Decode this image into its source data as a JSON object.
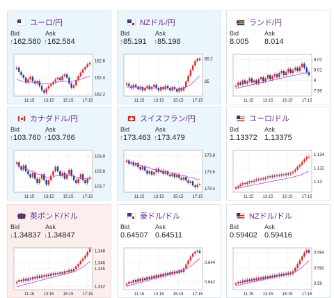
{
  "tiles": [
    {
      "pair": "ユーロ/円",
      "flag": "eu",
      "bg": "blue",
      "bid_label": "Bid",
      "ask_label": "Ask",
      "bid": "162.580",
      "ask": "162.584",
      "arrow": "up",
      "chart_data": {
        "type": "candlestick",
        "x_ticks": [
          "11:15",
          "13:15",
          "15:15",
          "17:15"
        ],
        "y_ticks": [
          "162.6",
          "162.4",
          "162.2"
        ],
        "y_tick_values": [
          162.6,
          162.4,
          162.2
        ],
        "ylim": [
          162.18,
          162.68
        ],
        "close": [
          162.52,
          162.47,
          162.43,
          162.4,
          162.34,
          162.38,
          162.41,
          162.36,
          162.33,
          162.36,
          162.3,
          162.25,
          162.22,
          162.27,
          162.3,
          162.32,
          162.35,
          162.38,
          162.4,
          162.37,
          162.42,
          162.44,
          162.4,
          162.33,
          162.28,
          162.31,
          162.37,
          162.42,
          162.46,
          162.5,
          162.53,
          162.56,
          162.58
        ],
        "ma": [
          162.38,
          162.37,
          162.36,
          162.36,
          162.35,
          162.35,
          162.35,
          162.34,
          162.34,
          162.34,
          162.34,
          162.33,
          162.33,
          162.33,
          162.33,
          162.33,
          162.34,
          162.34,
          162.35,
          162.35,
          162.35,
          162.36,
          162.36,
          162.36,
          162.36,
          162.36,
          162.37,
          162.37,
          162.38,
          162.39,
          162.4,
          162.41,
          162.42
        ]
      }
    },
    {
      "pair": "NZドル/円",
      "flag": "nz",
      "bg": "blue",
      "bid_label": "Bid",
      "ask_label": "Ask",
      "bid": "85.191",
      "ask": "85.198",
      "arrow": "up",
      "chart_data": {
        "type": "candlestick",
        "x_ticks": [
          "11:15",
          "13:15",
          "15:15",
          "17:15"
        ],
        "y_ticks": [
          "85.2",
          "85"
        ],
        "y_tick_values": [
          85.2,
          85.0
        ],
        "ylim": [
          84.87,
          85.24
        ],
        "close": [
          84.98,
          84.96,
          84.94,
          84.97,
          84.95,
          84.93,
          84.95,
          84.92,
          84.94,
          84.96,
          84.93,
          84.95,
          84.97,
          84.94,
          84.92,
          84.95,
          84.93,
          84.96,
          84.94,
          84.92,
          84.95,
          84.93,
          84.91,
          84.94,
          84.92,
          84.95,
          85.0,
          85.05,
          85.1,
          85.14,
          85.18,
          85.2,
          85.19
        ],
        "ma": [
          84.95,
          84.95,
          84.95,
          84.95,
          84.95,
          84.95,
          84.95,
          84.94,
          84.94,
          84.94,
          84.94,
          84.94,
          84.94,
          84.94,
          84.94,
          84.94,
          84.94,
          84.94,
          84.94,
          84.94,
          84.94,
          84.94,
          84.94,
          84.94,
          84.94,
          84.94,
          84.95,
          84.96,
          84.97,
          84.99,
          85.01,
          85.03,
          85.05
        ]
      }
    },
    {
      "pair": "ランド/円",
      "flag": "za",
      "bg": "white",
      "bid_label": "Bid",
      "ask_label": "Ask",
      "bid": "8.005",
      "ask": "8.014",
      "arrow": "none",
      "chart_data": {
        "type": "candlestick",
        "x_ticks": [
          "11:15",
          "13:15",
          "15:15",
          "17:15"
        ],
        "y_ticks": [
          "8.02",
          "8.01",
          "8",
          "7.99"
        ],
        "y_tick_values": [
          8.02,
          8.01,
          8.0,
          7.99
        ],
        "ylim": [
          7.985,
          8.025
        ],
        "close": [
          7.995,
          7.998,
          7.996,
          8.0,
          7.997,
          7.999,
          8.002,
          7.998,
          8.0,
          7.997,
          8.001,
          8.003,
          7.999,
          8.002,
          8.005,
          8.001,
          8.004,
          8.006,
          8.003,
          8.007,
          8.009,
          8.005,
          8.008,
          8.011,
          8.007,
          8.01,
          8.012,
          8.009,
          8.013,
          8.016,
          8.012,
          8.008,
          8.005
        ],
        "ma": [
          7.992,
          7.993,
          7.993,
          7.994,
          7.994,
          7.995,
          7.995,
          7.996,
          7.996,
          7.997,
          7.997,
          7.998,
          7.998,
          7.999,
          7.999,
          8.0,
          8.0,
          8.001,
          8.001,
          8.002,
          8.002,
          8.003,
          8.003,
          8.004,
          8.004,
          8.005,
          8.005,
          8.006,
          8.006,
          8.007,
          8.007,
          8.007,
          8.007
        ]
      }
    },
    {
      "pair": "カナダドル/円",
      "flag": "ca",
      "bg": "blue",
      "bid_label": "Bid",
      "ask_label": "Ask",
      "bid": "103.760",
      "ask": "103.766",
      "arrow": "up",
      "chart_data": {
        "type": "candlestick",
        "x_ticks": [
          "11:15",
          "13:15",
          "15:15",
          "17:15"
        ],
        "y_ticks": [
          "103.9",
          "103.8",
          "103.7"
        ],
        "y_tick_values": [
          103.9,
          103.8,
          103.7
        ],
        "ylim": [
          103.66,
          103.94
        ],
        "close": [
          103.86,
          103.83,
          103.81,
          103.84,
          103.8,
          103.78,
          103.76,
          103.79,
          103.75,
          103.72,
          103.75,
          103.78,
          103.74,
          103.71,
          103.74,
          103.77,
          103.8,
          103.83,
          103.8,
          103.77,
          103.79,
          103.75,
          103.78,
          103.81,
          103.77,
          103.74,
          103.72,
          103.75,
          103.78,
          103.74,
          103.72,
          103.75,
          103.76
        ],
        "ma": [
          103.85,
          103.84,
          103.83,
          103.83,
          103.82,
          103.81,
          103.8,
          103.8,
          103.79,
          103.78,
          103.78,
          103.77,
          103.77,
          103.76,
          103.76,
          103.76,
          103.76,
          103.77,
          103.77,
          103.77,
          103.77,
          103.77,
          103.77,
          103.77,
          103.77,
          103.77,
          103.76,
          103.76,
          103.76,
          103.76,
          103.75,
          103.75,
          103.75
        ]
      }
    },
    {
      "pair": "スイスフラン/円",
      "flag": "ch",
      "bg": "blue",
      "bid_label": "Bid",
      "ask_label": "Ask",
      "bid": "173.463",
      "ask": "173.479",
      "arrow": "up",
      "chart_data": {
        "type": "candlestick",
        "x_ticks": [
          "11:15",
          "13:15",
          "15:15",
          "17:15"
        ],
        "y_ticks": [
          "173.8",
          "173.6",
          "173.4"
        ],
        "y_tick_values": [
          173.8,
          173.6,
          173.4
        ],
        "ylim": [
          173.36,
          173.86
        ],
        "close": [
          173.74,
          173.7,
          173.72,
          173.68,
          173.71,
          173.66,
          173.63,
          173.67,
          173.62,
          173.58,
          173.61,
          173.57,
          173.6,
          173.64,
          173.6,
          173.62,
          173.58,
          173.61,
          173.57,
          173.55,
          173.58,
          173.54,
          173.57,
          173.53,
          173.51,
          173.54,
          173.5,
          173.47,
          173.49,
          173.44,
          173.42,
          173.45,
          173.46
        ],
        "ma": [
          173.72,
          173.72,
          173.71,
          173.7,
          173.7,
          173.69,
          173.68,
          173.67,
          173.66,
          173.66,
          173.65,
          173.64,
          173.63,
          173.63,
          173.62,
          173.62,
          173.61,
          173.61,
          173.6,
          173.59,
          173.59,
          173.58,
          173.58,
          173.57,
          173.56,
          173.56,
          173.55,
          173.54,
          173.54,
          173.53,
          173.52,
          173.51,
          173.51
        ]
      }
    },
    {
      "pair": "ユーロ/ドル",
      "flag": "us",
      "bg": "white",
      "bid_label": "Bid",
      "ask_label": "Ask",
      "bid": "1.13372",
      "ask": "1.13375",
      "arrow": "none",
      "chart_data": {
        "type": "candlestick",
        "x_ticks": [
          "11:15",
          "13:15",
          "15:15",
          "17:15"
        ],
        "y_ticks": [
          "1.134",
          "1.132",
          "1.13"
        ],
        "y_tick_values": [
          1.134,
          1.132,
          1.13
        ],
        "ylim": [
          1.1285,
          1.1346
        ],
        "close": [
          1.1292,
          1.1294,
          1.1296,
          1.1298,
          1.1297,
          1.1299,
          1.1301,
          1.13,
          1.1302,
          1.1304,
          1.1303,
          1.1305,
          1.1304,
          1.1306,
          1.1308,
          1.1307,
          1.1309,
          1.1308,
          1.131,
          1.1309,
          1.1311,
          1.131,
          1.1312,
          1.1311,
          1.1313,
          1.1315,
          1.1318,
          1.1322,
          1.1325,
          1.1329,
          1.1333,
          1.1336,
          1.1337
        ],
        "ma": [
          1.129,
          1.1291,
          1.1292,
          1.1292,
          1.1293,
          1.1294,
          1.1294,
          1.1295,
          1.1296,
          1.1296,
          1.1297,
          1.1298,
          1.1298,
          1.1299,
          1.13,
          1.13,
          1.1301,
          1.1302,
          1.1302,
          1.1303,
          1.1304,
          1.1304,
          1.1305,
          1.1306,
          1.1306,
          1.1307,
          1.1308,
          1.1309,
          1.131,
          1.1311,
          1.1313,
          1.1314,
          1.1316
        ]
      }
    },
    {
      "pair": "英ポンド/ドル",
      "flag": "uk",
      "bg": "pink",
      "bid_label": "Bid",
      "ask_label": "Ask",
      "bid": "1.34837",
      "ask": "1.34847",
      "arrow": "down",
      "chart_data": {
        "type": "candlestick",
        "x_ticks": [
          "11:15",
          "13:15",
          "15:15",
          "17:15"
        ],
        "y_ticks": [
          "1.348",
          "1.346",
          "1.345",
          "1.342"
        ],
        "y_tick_values": [
          1.348,
          1.346,
          1.345,
          1.342
        ],
        "ylim": [
          1.3415,
          1.3485
        ],
        "close": [
          1.3428,
          1.3431,
          1.3429,
          1.3433,
          1.343,
          1.3434,
          1.3432,
          1.3436,
          1.3434,
          1.3438,
          1.3435,
          1.3439,
          1.3437,
          1.344,
          1.3438,
          1.3442,
          1.344,
          1.3443,
          1.3441,
          1.3444,
          1.3442,
          1.3446,
          1.3444,
          1.3448,
          1.3446,
          1.345,
          1.3454,
          1.3458,
          1.3463,
          1.3467,
          1.3472,
          1.3478,
          1.3484
        ],
        "ma": [
          1.342,
          1.3421,
          1.3422,
          1.3423,
          1.3424,
          1.3425,
          1.3426,
          1.3427,
          1.3428,
          1.3429,
          1.343,
          1.3431,
          1.3432,
          1.3433,
          1.3434,
          1.3435,
          1.3436,
          1.3437,
          1.3438,
          1.3439,
          1.344,
          1.3441,
          1.3442,
          1.3443,
          1.3444,
          1.3445,
          1.3447,
          1.3449,
          1.3451,
          1.3453,
          1.3456,
          1.3459,
          1.3462
        ]
      }
    },
    {
      "pair": "豪ドル/ドル",
      "flag": "au",
      "bg": "white",
      "bid_label": "Bid",
      "ask_label": "Ask",
      "bid": "0.64507",
      "ask": "0.64511",
      "arrow": "none",
      "chart_data": {
        "type": "candlestick",
        "x_ticks": [
          "11:15",
          "13:15",
          "15:15",
          "17:15"
        ],
        "y_ticks": [
          "0.644",
          "0.642"
        ],
        "y_tick_values": [
          0.644,
          0.642
        ],
        "ylim": [
          0.6412,
          0.6455
        ],
        "close": [
          0.6418,
          0.642,
          0.6419,
          0.6422,
          0.642,
          0.6423,
          0.6421,
          0.6424,
          0.6422,
          0.6425,
          0.6423,
          0.6426,
          0.6424,
          0.6427,
          0.6425,
          0.6428,
          0.6426,
          0.6429,
          0.6427,
          0.643,
          0.6428,
          0.6431,
          0.6429,
          0.6432,
          0.643,
          0.6434,
          0.6438,
          0.6442,
          0.6446,
          0.6449,
          0.6451,
          0.6452,
          0.645
        ],
        "ma": [
          0.6415,
          0.6416,
          0.6417,
          0.6417,
          0.6418,
          0.6419,
          0.6419,
          0.642,
          0.6421,
          0.6421,
          0.6422,
          0.6423,
          0.6423,
          0.6424,
          0.6425,
          0.6425,
          0.6426,
          0.6427,
          0.6427,
          0.6428,
          0.6429,
          0.6429,
          0.643,
          0.6431,
          0.6431,
          0.6432,
          0.6433,
          0.6435,
          0.6436,
          0.6438,
          0.644,
          0.6442,
          0.6444
        ]
      }
    },
    {
      "pair": "NZドル/ドル",
      "flag": "us",
      "bg": "white",
      "bid_label": "Bid",
      "ask_label": "Ask",
      "bid": "0.59402",
      "ask": "0.59416",
      "arrow": "none",
      "chart_data": {
        "type": "candlestick",
        "x_ticks": [
          "11:15",
          "13:15",
          "15:15",
          "17:15"
        ],
        "y_ticks": [
          "0.594",
          "0.592",
          "0.59"
        ],
        "y_tick_values": [
          0.594,
          0.592,
          0.59
        ],
        "ylim": [
          0.5892,
          0.5946
        ],
        "close": [
          0.59,
          0.5902,
          0.5901,
          0.5904,
          0.5902,
          0.5905,
          0.5903,
          0.5906,
          0.5904,
          0.5907,
          0.5905,
          0.5908,
          0.5906,
          0.5909,
          0.5907,
          0.591,
          0.5908,
          0.5911,
          0.5909,
          0.5912,
          0.591,
          0.5913,
          0.5911,
          0.5914,
          0.5912,
          0.5916,
          0.592,
          0.5925,
          0.593,
          0.5935,
          0.594,
          0.5943,
          0.594
        ],
        "ma": [
          0.5897,
          0.5898,
          0.5898,
          0.5899,
          0.59,
          0.59,
          0.5901,
          0.5902,
          0.5902,
          0.5903,
          0.5904,
          0.5904,
          0.5905,
          0.5906,
          0.5906,
          0.5907,
          0.5908,
          0.5908,
          0.5909,
          0.591,
          0.591,
          0.5911,
          0.5912,
          0.5912,
          0.5913,
          0.5914,
          0.5915,
          0.5917,
          0.5919,
          0.5921,
          0.5924,
          0.5927,
          0.5929
        ]
      }
    }
  ],
  "colors": {
    "up_candle": "#d62828",
    "down_candle": "#1f3f8f",
    "ma_line": "#c84fd8",
    "grid": "#d0d6de",
    "axis": "#333333",
    "arrow_up": "#2c7bd4",
    "arrow_down": "#d4302c",
    "title": "#6a2c91"
  }
}
